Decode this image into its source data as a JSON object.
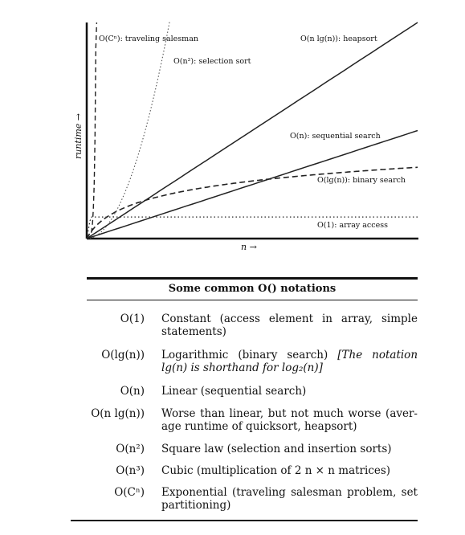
{
  "chart_data": {
    "type": "line",
    "xlabel": "n →",
    "ylabel": "runtime →",
    "grid": false,
    "series": [
      {
        "name": "O(1): array access",
        "style": "dotted",
        "label": "O(1): array access"
      },
      {
        "name": "O(lg(n)): binary search",
        "style": "dashed",
        "label": "O(lg(n)): binary search"
      },
      {
        "name": "O(n): sequential search",
        "style": "solid",
        "label": "O(n): sequential search"
      },
      {
        "name": "O(n lg(n)): heapsort",
        "style": "solid",
        "label": "O(n lg(n)): heapsort"
      },
      {
        "name": "O(n²): selection sort",
        "style": "dotted",
        "label": "O(n²): selection sort"
      },
      {
        "name": "O(Cⁿ): traveling salesman",
        "style": "dashed",
        "label": "O(Cⁿ): traveling salesman"
      }
    ]
  },
  "table": {
    "title": "Some common O() notations",
    "rows": [
      {
        "notation": "O(1)",
        "desc": "Constant (access element in array, simple statements)",
        "note": ""
      },
      {
        "notation": "O(lg(n))",
        "desc": "Logarithmic (binary search) ",
        "note": "[The notation lg(n) is shorthand for log₂(n)]"
      },
      {
        "notation": "O(n)",
        "desc": "Linear (sequential search)",
        "note": ""
      },
      {
        "notation": "O(n lg(n))",
        "desc": "Worse than linear, but not much worse (aver- age runtime of quicksort, heapsort)",
        "note": ""
      },
      {
        "notation": "O(n²)",
        "desc": "Square law (selection and insertion sorts)",
        "note": ""
      },
      {
        "notation": "O(n³)",
        "desc": "Cubic (multiplication of 2 n × n matrices)",
        "note": ""
      },
      {
        "notation": "O(Cⁿ)",
        "desc": "Exponential (traveling salesman problem, set partitioning)",
        "note": ""
      }
    ]
  }
}
